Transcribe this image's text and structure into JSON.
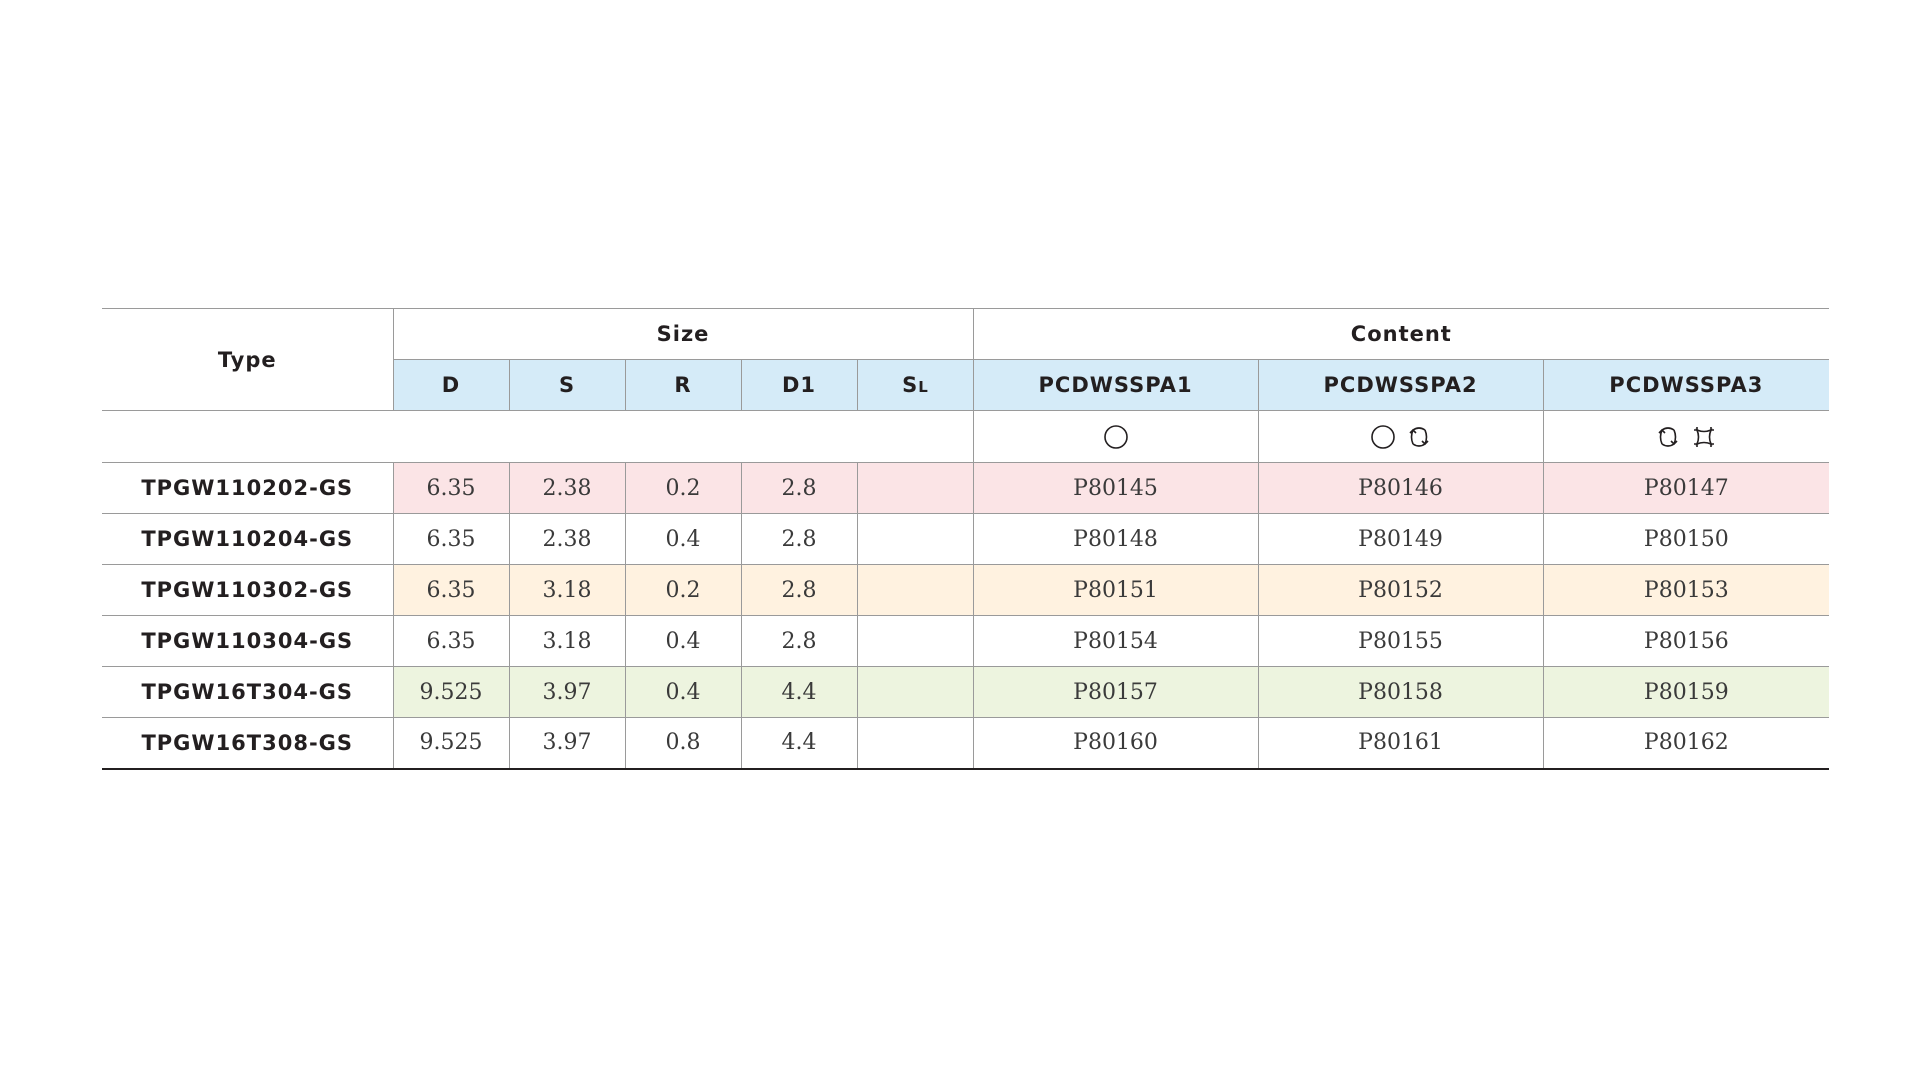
{
  "table": {
    "type_header": "Type",
    "size_header": "Size",
    "content_header": "Content",
    "size_columns": [
      {
        "main": "D",
        "sub": ""
      },
      {
        "main": "S",
        "sub": ""
      },
      {
        "main": "R",
        "sub": ""
      },
      {
        "main": "D1",
        "sub": ""
      },
      {
        "main": "S",
        "sub": "L"
      }
    ],
    "content_columns": [
      "PCDWSSPA1",
      "PCDWSSPA2",
      "PCDWSSPA3"
    ],
    "content_icons": [
      [
        "circle-icon"
      ],
      [
        "circle-icon",
        "rotate-icon"
      ],
      [
        "rotate-icon",
        "expand-icon"
      ]
    ],
    "rows": [
      {
        "type": "TPGW110202-GS",
        "D": "6.35",
        "S": "2.38",
        "R": "0.2",
        "D1": "2.8",
        "SL": "",
        "c1": "P80145",
        "c2": "P80146",
        "c3": "P80147",
        "color": "pink"
      },
      {
        "type": "TPGW110204-GS",
        "D": "6.35",
        "S": "2.38",
        "R": "0.4",
        "D1": "2.8",
        "SL": "",
        "c1": "P80148",
        "c2": "P80149",
        "c3": "P80150",
        "color": "white"
      },
      {
        "type": "TPGW110302-GS",
        "D": "6.35",
        "S": "3.18",
        "R": "0.2",
        "D1": "2.8",
        "SL": "",
        "c1": "P80151",
        "c2": "P80152",
        "c3": "P80153",
        "color": "yellow"
      },
      {
        "type": "TPGW110304-GS",
        "D": "6.35",
        "S": "3.18",
        "R": "0.4",
        "D1": "2.8",
        "SL": "",
        "c1": "P80154",
        "c2": "P80155",
        "c3": "P80156",
        "color": "white"
      },
      {
        "type": "TPGW16T304-GS",
        "D": "9.525",
        "S": "3.97",
        "R": "0.4",
        "D1": "4.4",
        "SL": "",
        "c1": "P80157",
        "c2": "P80158",
        "c3": "P80159",
        "color": "green"
      },
      {
        "type": "TPGW16T308-GS",
        "D": "9.525",
        "S": "3.97",
        "R": "0.8",
        "D1": "4.4",
        "SL": "",
        "c1": "P80160",
        "c2": "P80161",
        "c3": "P80162",
        "color": "white"
      }
    ],
    "colors": {
      "header_blue": "#d5ebf8",
      "row_pink": "#fbe4e6",
      "row_yellow": "#fff2e0",
      "row_green": "#edf4df"
    }
  }
}
